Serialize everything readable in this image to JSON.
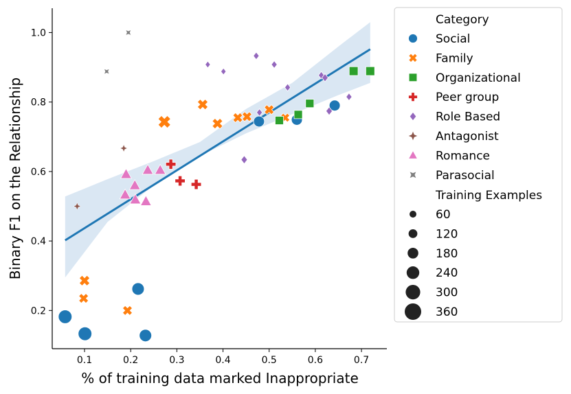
{
  "chart_data": {
    "type": "scatter",
    "xlabel": "% of training data marked Inappropriate",
    "ylabel": "Binary F1 on the Relationship",
    "xlim": [
      0.03,
      0.755
    ],
    "ylim": [
      0.09,
      1.07
    ],
    "xticks": [
      0.1,
      0.2,
      0.3,
      0.4,
      0.5,
      0.6,
      0.7
    ],
    "yticks": [
      0.2,
      0.4,
      0.6,
      0.8,
      1.0
    ],
    "x_tick_labels": [
      "0.1",
      "0.2",
      "0.3",
      "0.4",
      "0.5",
      "0.6",
      "0.7"
    ],
    "y_tick_labels": [
      "0.2",
      "0.4",
      "0.6",
      "0.8",
      "1.0"
    ],
    "grid": false,
    "legend_position": "outside-right",
    "hue_title": "Category",
    "size_title": "Training Examples",
    "size_legend": [
      {
        "label": "60",
        "value": 60
      },
      {
        "label": "120",
        "value": 120
      },
      {
        "label": "180",
        "value": 180
      },
      {
        "label": "240",
        "value": 240
      },
      {
        "label": "300",
        "value": 300
      },
      {
        "label": "360",
        "value": 360
      }
    ],
    "series": [
      {
        "name": "Social",
        "marker": "circle",
        "color": "#1f77b4",
        "points": [
          {
            "x": 0.058,
            "y": 0.182,
            "size": 300
          },
          {
            "x": 0.101,
            "y": 0.133,
            "size": 300
          },
          {
            "x": 0.216,
            "y": 0.262,
            "size": 240
          },
          {
            "x": 0.232,
            "y": 0.128,
            "size": 240
          },
          {
            "x": 0.478,
            "y": 0.744,
            "size": 180
          },
          {
            "x": 0.56,
            "y": 0.749,
            "size": 180
          },
          {
            "x": 0.642,
            "y": 0.79,
            "size": 180
          }
        ]
      },
      {
        "name": "Family",
        "marker": "x",
        "color": "#ff7f0e",
        "points": [
          {
            "x": 0.1,
            "y": 0.286,
            "size": 180
          },
          {
            "x": 0.098,
            "y": 0.235,
            "size": 150
          },
          {
            "x": 0.193,
            "y": 0.2,
            "size": 150
          },
          {
            "x": 0.273,
            "y": 0.743,
            "size": 270
          },
          {
            "x": 0.356,
            "y": 0.793,
            "size": 180
          },
          {
            "x": 0.388,
            "y": 0.738,
            "size": 180
          },
          {
            "x": 0.432,
            "y": 0.755,
            "size": 150
          },
          {
            "x": 0.452,
            "y": 0.758,
            "size": 150
          },
          {
            "x": 0.5,
            "y": 0.778,
            "size": 150
          },
          {
            "x": 0.535,
            "y": 0.755,
            "size": 120
          }
        ]
      },
      {
        "name": "Organizational",
        "marker": "square",
        "color": "#2ca02c",
        "points": [
          {
            "x": 0.522,
            "y": 0.747,
            "size": 120
          },
          {
            "x": 0.563,
            "y": 0.764,
            "size": 120
          },
          {
            "x": 0.588,
            "y": 0.796,
            "size": 120
          },
          {
            "x": 0.683,
            "y": 0.889,
            "size": 140
          },
          {
            "x": 0.719,
            "y": 0.889,
            "size": 140
          }
        ]
      },
      {
        "name": "Peer group",
        "marker": "plus",
        "color": "#d62728",
        "points": [
          {
            "x": 0.287,
            "y": 0.621,
            "size": 150
          },
          {
            "x": 0.307,
            "y": 0.573,
            "size": 150
          },
          {
            "x": 0.342,
            "y": 0.563,
            "size": 150
          }
        ]
      },
      {
        "name": "Role Based",
        "marker": "diamond",
        "color": "#9467bd",
        "points": [
          {
            "x": 0.367,
            "y": 0.908,
            "size": 60
          },
          {
            "x": 0.401,
            "y": 0.888,
            "size": 60
          },
          {
            "x": 0.446,
            "y": 0.634,
            "size": 100
          },
          {
            "x": 0.472,
            "y": 0.933,
            "size": 80
          },
          {
            "x": 0.479,
            "y": 0.77,
            "size": 80
          },
          {
            "x": 0.511,
            "y": 0.908,
            "size": 80
          },
          {
            "x": 0.54,
            "y": 0.842,
            "size": 80
          },
          {
            "x": 0.613,
            "y": 0.877,
            "size": 80
          },
          {
            "x": 0.621,
            "y": 0.87,
            "size": 100
          },
          {
            "x": 0.63,
            "y": 0.774,
            "size": 100
          },
          {
            "x": 0.673,
            "y": 0.815,
            "size": 80
          }
        ]
      },
      {
        "name": "Antagonist",
        "marker": "star4",
        "color": "#8c564b",
        "points": [
          {
            "x": 0.084,
            "y": 0.5,
            "size": 60
          },
          {
            "x": 0.185,
            "y": 0.667,
            "size": 60
          }
        ]
      },
      {
        "name": "Romance",
        "marker": "triangle",
        "color": "#e377c2",
        "points": [
          {
            "x": 0.19,
            "y": 0.592,
            "size": 180
          },
          {
            "x": 0.188,
            "y": 0.533,
            "size": 180
          },
          {
            "x": 0.209,
            "y": 0.56,
            "size": 180
          },
          {
            "x": 0.21,
            "y": 0.519,
            "size": 180
          },
          {
            "x": 0.233,
            "y": 0.514,
            "size": 180
          },
          {
            "x": 0.237,
            "y": 0.604,
            "size": 180
          },
          {
            "x": 0.264,
            "y": 0.604,
            "size": 180
          }
        ]
      },
      {
        "name": "Parasocial",
        "marker": "xstar",
        "color": "#7f7f7f",
        "points": [
          {
            "x": 0.148,
            "y": 0.888,
            "size": 60
          },
          {
            "x": 0.195,
            "y": 1.0,
            "size": 60
          }
        ]
      }
    ],
    "regression": {
      "x": [
        0.058,
        0.719
      ],
      "y": [
        0.402,
        0.952
      ],
      "ci_x": [
        0.058,
        0.15,
        0.25,
        0.35,
        0.45,
        0.55,
        0.65,
        0.719
      ],
      "ci_low": [
        0.295,
        0.455,
        0.56,
        0.645,
        0.71,
        0.765,
        0.82,
        0.855
      ],
      "ci_high": [
        0.528,
        0.578,
        0.63,
        0.685,
        0.78,
        0.855,
        0.96,
        1.03
      ],
      "line_color": "#1f77b4",
      "band_color": "#bcd4ea"
    }
  }
}
